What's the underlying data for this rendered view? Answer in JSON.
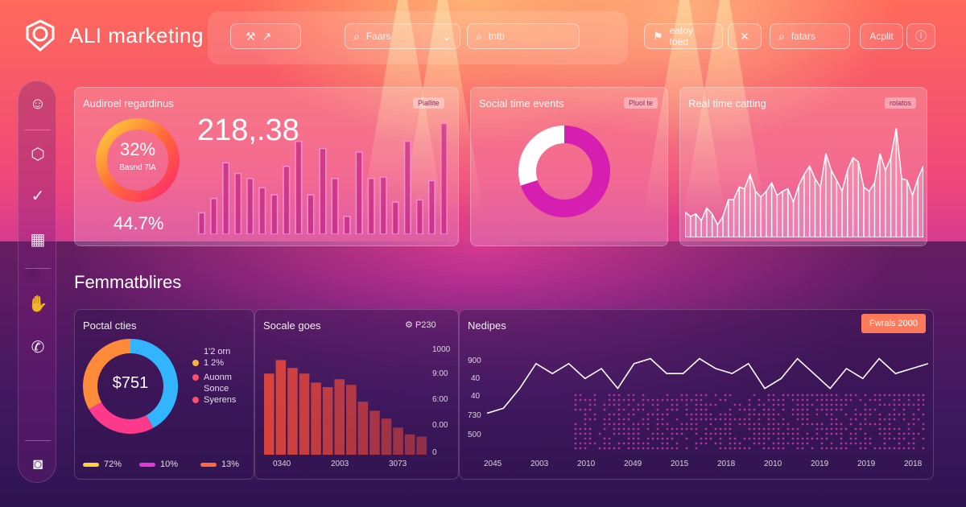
{
  "app": {
    "title": "ALI marketing"
  },
  "topbar": {
    "apple_pill": "",
    "search1": "Faars",
    "search2": "tntb",
    "filter": "eatoy foed",
    "search3": "fatars",
    "action": "Acplit"
  },
  "cards": {
    "audience": {
      "title": "Audiroel regardinus",
      "tag": "Piallite",
      "donut_pct": "32%",
      "donut_sub": "Basnd 7lA",
      "big_number": "218,.38",
      "secondary_pct": "44.7%"
    },
    "social_events": {
      "title": "Social time events",
      "tag": "Pluol te"
    },
    "realtime": {
      "title": "Real time catting",
      "tag": "rolatos"
    }
  },
  "section": {
    "title": "Femmatblires"
  },
  "bottom": {
    "portal": {
      "title": "Poctal cties",
      "center_value": "$751",
      "legend": [
        {
          "label": "1'2 orn",
          "color": "#f5b43a"
        },
        {
          "label": "1 2%",
          "color": "#f5b43a"
        },
        {
          "label": "Auonm",
          "color": "#ff4d6a"
        },
        {
          "label": "Sonce",
          "color": "#ff4d6a"
        },
        {
          "label": "Syerens",
          "color": "#ff4d6a"
        }
      ],
      "footer": [
        {
          "label": "72%",
          "color": "#ffd23a"
        },
        {
          "label": "10%",
          "color": "#e23ad6"
        },
        {
          "label": "13%",
          "color": "#ff6a3a"
        }
      ]
    },
    "socials": {
      "title": "Socale goes",
      "tag": "P230",
      "y_ticks": [
        "1000",
        "9:00",
        "6:00",
        "0.00",
        "0"
      ],
      "x_ticks": [
        "0340",
        "2003",
        "3073"
      ]
    },
    "nedipes": {
      "title": "Nedipes",
      "button": "Fwrals 2000",
      "y_ticks": [
        "900",
        "40",
        "40",
        "730",
        "500"
      ],
      "x_ticks": [
        "2045",
        "2003",
        "2010",
        "2049",
        "2015",
        "2018",
        "2010",
        "2019",
        "2019",
        "2018"
      ]
    }
  },
  "sidebar": {
    "icons": [
      "smile-icon",
      "cube-icon",
      "check-icon",
      "grid-icon",
      "hand-icon",
      "phone-icon",
      "camera-icon"
    ]
  },
  "chart_data": [
    {
      "type": "bar",
      "title": "Audiroel regardinus",
      "values": [
        30,
        50,
        100,
        85,
        78,
        65,
        55,
        95,
        130,
        55,
        120,
        78,
        25,
        115,
        78,
        80,
        45,
        130,
        48,
        75,
        155
      ]
    },
    {
      "type": "pie",
      "title": "Social time events",
      "values": [
        70,
        30
      ],
      "colors": [
        "#d61fb0",
        "#ffffff"
      ]
    },
    {
      "type": "area",
      "title": "Real time catting",
      "values": [
        30,
        25,
        28,
        20,
        35,
        28,
        15,
        25,
        45,
        45,
        60,
        58,
        75,
        55,
        48,
        55,
        65,
        50,
        55,
        58,
        42,
        62,
        75,
        85,
        70,
        60,
        100,
        80,
        68,
        55,
        80,
        95,
        90,
        60,
        55,
        65,
        100,
        80,
        95,
        130,
        70,
        68,
        50,
        70,
        85
      ]
    },
    {
      "type": "pie",
      "title": "Poctal cties",
      "values": [
        42,
        25,
        33
      ],
      "colors": [
        "#33b4ff",
        "#ff3a8a",
        "#ff8a3a"
      ]
    },
    {
      "type": "bar",
      "title": "Socale goes",
      "values": [
        720,
        840,
        770,
        720,
        640,
        600,
        670,
        620,
        470,
        390,
        320,
        240,
        180,
        160
      ]
    },
    {
      "type": "line",
      "title": "Nedipes",
      "values": [
        45,
        50,
        70,
        95,
        85,
        95,
        80,
        90,
        70,
        95,
        100,
        85,
        85,
        100,
        90,
        85,
        95,
        70,
        80,
        100,
        85,
        70,
        90,
        80,
        100,
        85,
        90,
        95
      ]
    }
  ]
}
